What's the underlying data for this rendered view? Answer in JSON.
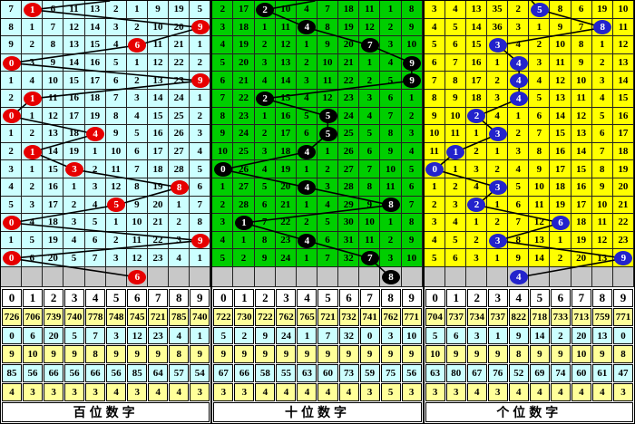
{
  "chart_data": {
    "type": "table",
    "title": "3D lottery digit trend chart (three digit panels with drawn-number trend line)",
    "columns": [
      "0",
      "1",
      "2",
      "3",
      "4",
      "5",
      "6",
      "7",
      "8",
      "9"
    ],
    "stat_row_colors": [
      "#FFFF99",
      "#CCFFFF",
      "#FFFF99",
      "#CCFFFF",
      "#FFFF99"
    ],
    "grid_line_color": "#222222",
    "gray_row_color": "#C8C8C8",
    "trend_line_color": "#000000",
    "panels": [
      {
        "id": "hundreds",
        "bottom_label": "百位数字",
        "cell_bg": "#CCFFFF",
        "ball_color": "#E60000",
        "entry_x_frac": 0.52,
        "rows": [
          {
            "c": [
              "7",
              "1",
              "6",
              "11",
              "13",
              "2",
              "1",
              "9",
              "19",
              "5"
            ],
            "b": 1
          },
          {
            "c": [
              "8",
              "1",
              "7",
              "12",
              "14",
              "3",
              "2",
              "10",
              "20",
              "9"
            ],
            "b": 9
          },
          {
            "c": [
              "9",
              "2",
              "8",
              "13",
              "15",
              "4",
              "6",
              "11",
              "21",
              "1"
            ],
            "b": 6
          },
          {
            "c": [
              "0",
              "3",
              "9",
              "14",
              "16",
              "5",
              "1",
              "12",
              "22",
              "2"
            ],
            "b": 0
          },
          {
            "c": [
              "1",
              "4",
              "10",
              "15",
              "17",
              "6",
              "2",
              "13",
              "23",
              "9"
            ],
            "b": 9
          },
          {
            "c": [
              "2",
              "1",
              "11",
              "16",
              "18",
              "7",
              "3",
              "14",
              "24",
              "1"
            ],
            "b": 1
          },
          {
            "c": [
              "0",
              "1",
              "12",
              "17",
              "19",
              "8",
              "4",
              "15",
              "25",
              "2"
            ],
            "b": 0
          },
          {
            "c": [
              "1",
              "2",
              "13",
              "18",
              "4",
              "9",
              "5",
              "16",
              "26",
              "3"
            ],
            "b": 4
          },
          {
            "c": [
              "2",
              "1",
              "14",
              "19",
              "1",
              "10",
              "6",
              "17",
              "27",
              "4"
            ],
            "b": 1
          },
          {
            "c": [
              "3",
              "1",
              "15",
              "3",
              "2",
              "11",
              "7",
              "18",
              "28",
              "5"
            ],
            "b": 3
          },
          {
            "c": [
              "4",
              "2",
              "16",
              "1",
              "3",
              "12",
              "8",
              "19",
              "8",
              "6"
            ],
            "b": 8
          },
          {
            "c": [
              "5",
              "3",
              "17",
              "2",
              "4",
              "5",
              "9",
              "20",
              "1",
              "7"
            ],
            "b": 5
          },
          {
            "c": [
              "0",
              "4",
              "18",
              "3",
              "5",
              "1",
              "10",
              "21",
              "2",
              "8"
            ],
            "b": 0
          },
          {
            "c": [
              "1",
              "5",
              "19",
              "4",
              "6",
              "2",
              "11",
              "22",
              "3",
              "9"
            ],
            "b": 9
          },
          {
            "c": [
              "0",
              "6",
              "20",
              "5",
              "7",
              "3",
              "12",
              "23",
              "4",
              "1"
            ],
            "b": 0
          }
        ],
        "tail_ball_col": 6,
        "stats": [
          [
            "726",
            "706",
            "739",
            "740",
            "778",
            "748",
            "745",
            "721",
            "785",
            "740"
          ],
          [
            "0",
            "6",
            "20",
            "5",
            "7",
            "3",
            "12",
            "23",
            "4",
            "1"
          ],
          [
            "9",
            "10",
            "9",
            "9",
            "8",
            "9",
            "9",
            "9",
            "8",
            "9"
          ],
          [
            "85",
            "56",
            "66",
            "56",
            "66",
            "56",
            "85",
            "64",
            "57",
            "54"
          ],
          [
            "4",
            "3",
            "3",
            "3",
            "3",
            "4",
            "3",
            "4",
            "4",
            "3"
          ]
        ]
      },
      {
        "id": "tens",
        "bottom_label": "十位数字",
        "cell_bg": "#00CE00",
        "ball_color": "#000000",
        "entry_x_frac": 0.49,
        "rows": [
          {
            "c": [
              "2",
              "17",
              "2",
              "10",
              "4",
              "7",
              "18",
              "11",
              "1",
              "8"
            ],
            "b": 2
          },
          {
            "c": [
              "3",
              "18",
              "1",
              "11",
              "4",
              "8",
              "19",
              "12",
              "2",
              "9"
            ],
            "b": 4
          },
          {
            "c": [
              "4",
              "19",
              "2",
              "12",
              "1",
              "9",
              "20",
              "7",
              "3",
              "10"
            ],
            "b": 7
          },
          {
            "c": [
              "5",
              "20",
              "3",
              "13",
              "2",
              "10",
              "21",
              "1",
              "4",
              "9"
            ],
            "b": 9
          },
          {
            "c": [
              "6",
              "21",
              "4",
              "14",
              "3",
              "11",
              "22",
              "2",
              "5",
              "9"
            ],
            "b": 9
          },
          {
            "c": [
              "7",
              "22",
              "2",
              "15",
              "4",
              "12",
              "23",
              "3",
              "6",
              "1"
            ],
            "b": 2
          },
          {
            "c": [
              "8",
              "23",
              "1",
              "16",
              "5",
              "5",
              "24",
              "4",
              "7",
              "2"
            ],
            "b": 5
          },
          {
            "c": [
              "9",
              "24",
              "2",
              "17",
              "6",
              "5",
              "25",
              "5",
              "8",
              "3"
            ],
            "b": 5
          },
          {
            "c": [
              "10",
              "25",
              "3",
              "18",
              "4",
              "1",
              "26",
              "6",
              "9",
              "4"
            ],
            "b": 4
          },
          {
            "c": [
              "0",
              "26",
              "4",
              "19",
              "1",
              "2",
              "27",
              "7",
              "10",
              "5"
            ],
            "b": 0
          },
          {
            "c": [
              "1",
              "27",
              "5",
              "20",
              "4",
              "3",
              "28",
              "8",
              "11",
              "6"
            ],
            "b": 4
          },
          {
            "c": [
              "2",
              "28",
              "6",
              "21",
              "1",
              "4",
              "29",
              "9",
              "8",
              "7"
            ],
            "b": 8
          },
          {
            "c": [
              "3",
              "1",
              "7",
              "22",
              "2",
              "5",
              "30",
              "10",
              "1",
              "8"
            ],
            "b": 1
          },
          {
            "c": [
              "4",
              "1",
              "8",
              "23",
              "4",
              "6",
              "31",
              "11",
              "2",
              "9"
            ],
            "b": 4
          },
          {
            "c": [
              "5",
              "2",
              "9",
              "24",
              "1",
              "7",
              "32",
              "7",
              "3",
              "10"
            ],
            "b": 7
          }
        ],
        "tail_ball_col": 8,
        "stats": [
          [
            "722",
            "730",
            "722",
            "762",
            "765",
            "721",
            "732",
            "741",
            "762",
            "771"
          ],
          [
            "5",
            "2",
            "9",
            "24",
            "1",
            "7",
            "32",
            "0",
            "3",
            "10"
          ],
          [
            "9",
            "9",
            "9",
            "9",
            "9",
            "9",
            "9",
            "9",
            "9",
            "9"
          ],
          [
            "67",
            "66",
            "58",
            "55",
            "63",
            "60",
            "73",
            "59",
            "75",
            "56"
          ],
          [
            "3",
            "3",
            "4",
            "4",
            "4",
            "4",
            "4",
            "3",
            "5",
            "3"
          ]
        ]
      },
      {
        "id": "units",
        "bottom_label": "个位数字",
        "cell_bg": "#FFFF00",
        "ball_color": "#2323CC",
        "entry_x_frac": 0.51,
        "rows": [
          {
            "c": [
              "3",
              "4",
              "13",
              "35",
              "2",
              "5",
              "8",
              "6",
              "19",
              "10"
            ],
            "b": 5
          },
          {
            "c": [
              "4",
              "5",
              "14",
              "36",
              "3",
              "1",
              "9",
              "7",
              "8",
              "11"
            ],
            "b": 8
          },
          {
            "c": [
              "5",
              "6",
              "15",
              "3",
              "4",
              "2",
              "10",
              "8",
              "1",
              "12"
            ],
            "b": 3
          },
          {
            "c": [
              "6",
              "7",
              "16",
              "1",
              "4",
              "3",
              "11",
              "9",
              "2",
              "13"
            ],
            "b": 4
          },
          {
            "c": [
              "7",
              "8",
              "17",
              "2",
              "4",
              "4",
              "12",
              "10",
              "3",
              "14"
            ],
            "b": 4
          },
          {
            "c": [
              "8",
              "9",
              "18",
              "3",
              "4",
              "5",
              "13",
              "11",
              "4",
              "15"
            ],
            "b": 4
          },
          {
            "c": [
              "9",
              "10",
              "2",
              "4",
              "1",
              "6",
              "14",
              "12",
              "5",
              "16"
            ],
            "b": 2
          },
          {
            "c": [
              "10",
              "11",
              "1",
              "3",
              "2",
              "7",
              "15",
              "13",
              "6",
              "17"
            ],
            "b": 3
          },
          {
            "c": [
              "11",
              "1",
              "2",
              "1",
              "3",
              "8",
              "16",
              "14",
              "7",
              "18"
            ],
            "b": 1
          },
          {
            "c": [
              "0",
              "1",
              "3",
              "2",
              "4",
              "9",
              "17",
              "15",
              "8",
              "19"
            ],
            "b": 0
          },
          {
            "c": [
              "1",
              "2",
              "4",
              "3",
              "5",
              "10",
              "18",
              "16",
              "9",
              "20"
            ],
            "b": 3
          },
          {
            "c": [
              "2",
              "3",
              "2",
              "1",
              "6",
              "11",
              "19",
              "17",
              "10",
              "21"
            ],
            "b": 2
          },
          {
            "c": [
              "3",
              "4",
              "1",
              "2",
              "7",
              "12",
              "6",
              "18",
              "11",
              "22"
            ],
            "b": 6
          },
          {
            "c": [
              "4",
              "5",
              "2",
              "3",
              "8",
              "13",
              "1",
              "19",
              "12",
              "23"
            ],
            "b": 3
          },
          {
            "c": [
              "5",
              "6",
              "3",
              "1",
              "9",
              "14",
              "2",
              "20",
              "13",
              "9"
            ],
            "b": 9
          }
        ],
        "tail_ball_col": 4,
        "stats": [
          [
            "704",
            "737",
            "734",
            "737",
            "822",
            "718",
            "733",
            "713",
            "759",
            "771"
          ],
          [
            "5",
            "6",
            "3",
            "1",
            "9",
            "14",
            "2",
            "20",
            "13",
            "0"
          ],
          [
            "10",
            "9",
            "9",
            "9",
            "8",
            "9",
            "9",
            "10",
            "9",
            "8"
          ],
          [
            "63",
            "80",
            "67",
            "76",
            "52",
            "69",
            "74",
            "60",
            "61",
            "47"
          ],
          [
            "3",
            "3",
            "4",
            "3",
            "4",
            "4",
            "4",
            "4",
            "4",
            "3"
          ]
        ]
      }
    ]
  }
}
